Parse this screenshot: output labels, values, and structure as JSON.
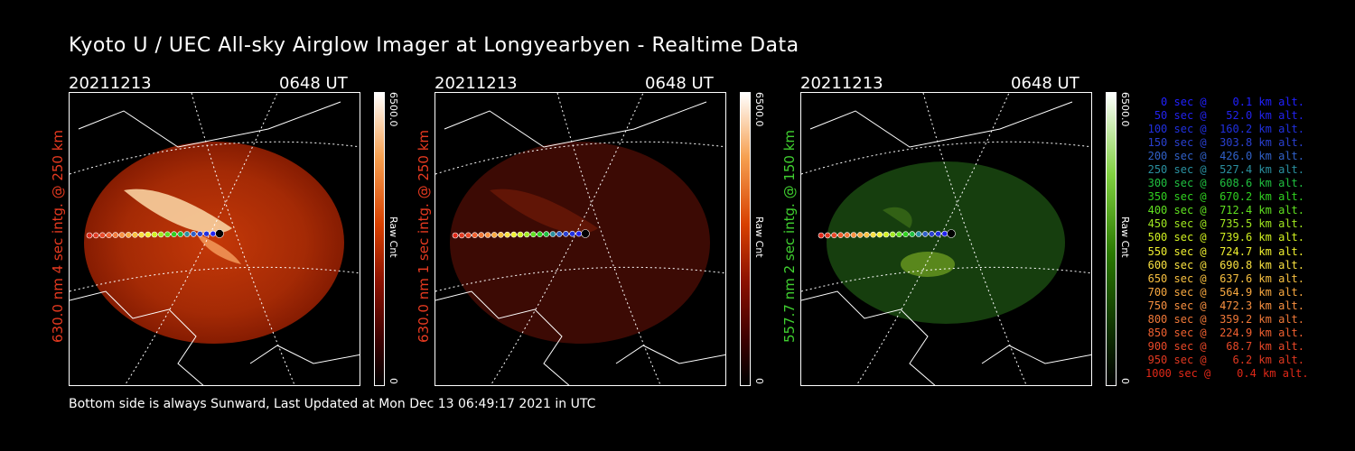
{
  "title": "Kyoto U / UEC All-sky Airglow Imager at Longyearbyen - Realtime Data",
  "footer": "Bottom side is always Sunward, Last Updated at Mon Dec 13 06:49:17 2021 in UTC",
  "panels": [
    {
      "date": "20211213",
      "time": "0648 UT",
      "ylabel": "630.0 nm 4 sec intg. @ 250 km",
      "ylabel_color": "#e83a20",
      "cbar_max": "6500.0",
      "cbar_min": "0",
      "cbar_label": "Raw Cnt",
      "image_type": "red-630nm-bright"
    },
    {
      "date": "20211213",
      "time": "0648 UT",
      "ylabel": "630.0 nm 1 sec intg. @ 250 km",
      "ylabel_color": "#e83a20",
      "cbar_max": "6500.0",
      "cbar_min": "0",
      "cbar_label": "Raw Cnt",
      "image_type": "red-630nm-dim"
    },
    {
      "date": "20211213",
      "time": "0648 UT",
      "ylabel": "557.7 nm 2 sec intg. @ 150 km",
      "ylabel_color": "#40d030",
      "cbar_max": "6500.0",
      "cbar_min": "0",
      "cbar_label": "Raw Cnt",
      "image_type": "green-557nm"
    }
  ],
  "legend": [
    {
      "text": "0 sec @    0.1 km alt.",
      "color": "#2020ff"
    },
    {
      "text": "50 sec @   52.0 km alt.",
      "color": "#2222ee"
    },
    {
      "text": "100 sec @  160.2 km alt.",
      "color": "#2030e0"
    },
    {
      "text": "150 sec @  303.8 km alt.",
      "color": "#2a40d0"
    },
    {
      "text": "200 sec @  426.0 km alt.",
      "color": "#3060c8"
    },
    {
      "text": "250 sec @  527.4 km alt.",
      "color": "#2a90a0"
    },
    {
      "text": "300 sec @  608.6 km alt.",
      "color": "#20c040"
    },
    {
      "text": "350 sec @  670.2 km alt.",
      "color": "#30d020"
    },
    {
      "text": "400 sec @  712.4 km alt.",
      "color": "#60e020"
    },
    {
      "text": "450 sec @  735.5 km alt.",
      "color": "#a0e820"
    },
    {
      "text": "500 sec @  739.6 km alt.",
      "color": "#d0f020"
    },
    {
      "text": "550 sec @  724.7 km alt.",
      "color": "#f0f030"
    },
    {
      "text": "600 sec @  690.8 km alt.",
      "color": "#f8e040"
    },
    {
      "text": "650 sec @  637.6 km alt.",
      "color": "#f8c040"
    },
    {
      "text": "700 sec @  564.9 km alt.",
      "color": "#f8a840"
    },
    {
      "text": "750 sec @  472.3 km alt.",
      "color": "#f89040"
    },
    {
      "text": "800 sec @  359.2 km alt.",
      "color": "#f07838"
    },
    {
      "text": "850 sec @  224.9 km alt.",
      "color": "#f06030"
    },
    {
      "text": "900 sec @   68.7 km alt.",
      "color": "#e84828"
    },
    {
      "text": "950 sec @    6.2 km alt.",
      "color": "#e03820"
    },
    {
      "text": "1000 sec @    0.4 km alt.",
      "color": "#e02818"
    }
  ]
}
